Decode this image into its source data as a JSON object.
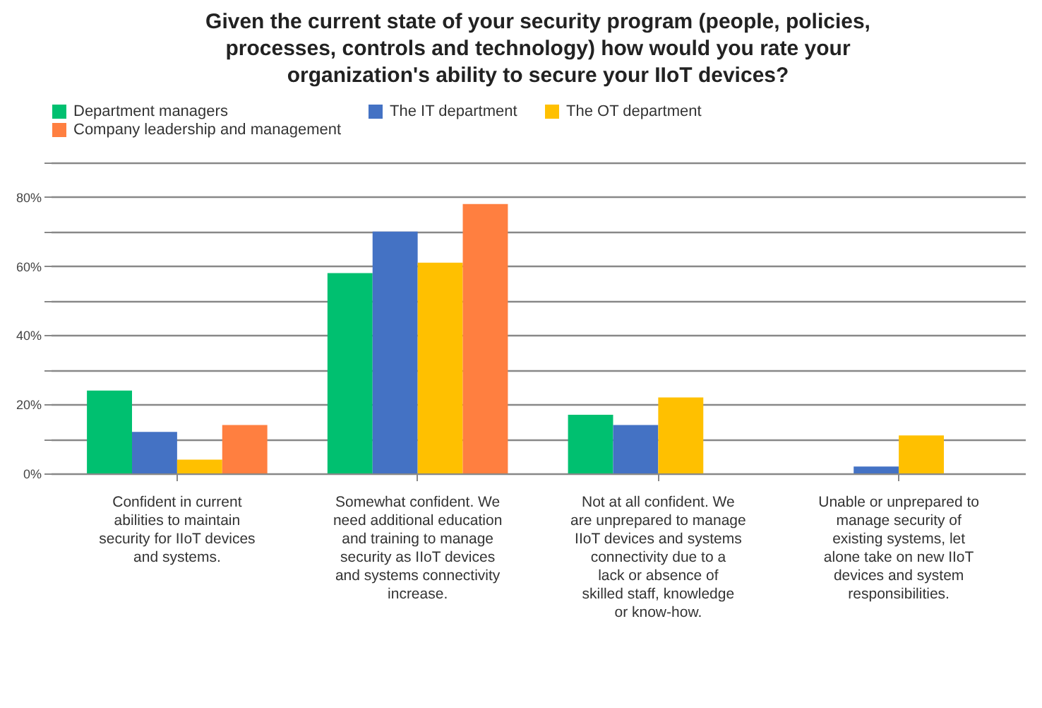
{
  "chart_data": {
    "type": "bar",
    "title": "Given the current state of your security program (people, policies, processes, controls and technology) how would you rate your organization's ability to secure your IIoT devices?",
    "categories": [
      "Confident in current abilities to maintain security for IIoT devices and systems.",
      "Somewhat confident. We need additional education and training to manage security as IIoT devices and systems connectivity increase.",
      "Not at all confident. We are unprepared to manage IIoT devices and systems connectivity due to a lack or absence of skilled staff, knowledge or know-how.",
      "Unable or unprepared to manage security of existing systems, let alone take on new IIoT devices and system responsibilities."
    ],
    "series": [
      {
        "name": "Department managers",
        "color": "#00c070",
        "values": [
          24,
          58,
          17,
          0
        ]
      },
      {
        "name": "The IT department",
        "color": "#4472c4",
        "values": [
          12,
          70,
          14,
          2
        ]
      },
      {
        "name": "The OT department",
        "color": "#ffc000",
        "values": [
          4,
          61,
          22,
          11
        ]
      },
      {
        "name": "Company leadership and management",
        "color": "#ff7f40",
        "values": [
          14,
          78,
          0,
          0
        ]
      }
    ],
    "ylim": [
      0,
      90
    ],
    "yticks": [
      {
        "value": 0,
        "label": "0%"
      },
      {
        "value": 10,
        "label": null
      },
      {
        "value": 20,
        "label": "20%"
      },
      {
        "value": 30,
        "label": null
      },
      {
        "value": 40,
        "label": "40%"
      },
      {
        "value": 50,
        "label": null
      },
      {
        "value": 60,
        "label": "60%"
      },
      {
        "value": 70,
        "label": null
      },
      {
        "value": 80,
        "label": "80%"
      },
      {
        "value": 90,
        "label": null
      }
    ],
    "grid": "y",
    "legend": "top"
  }
}
